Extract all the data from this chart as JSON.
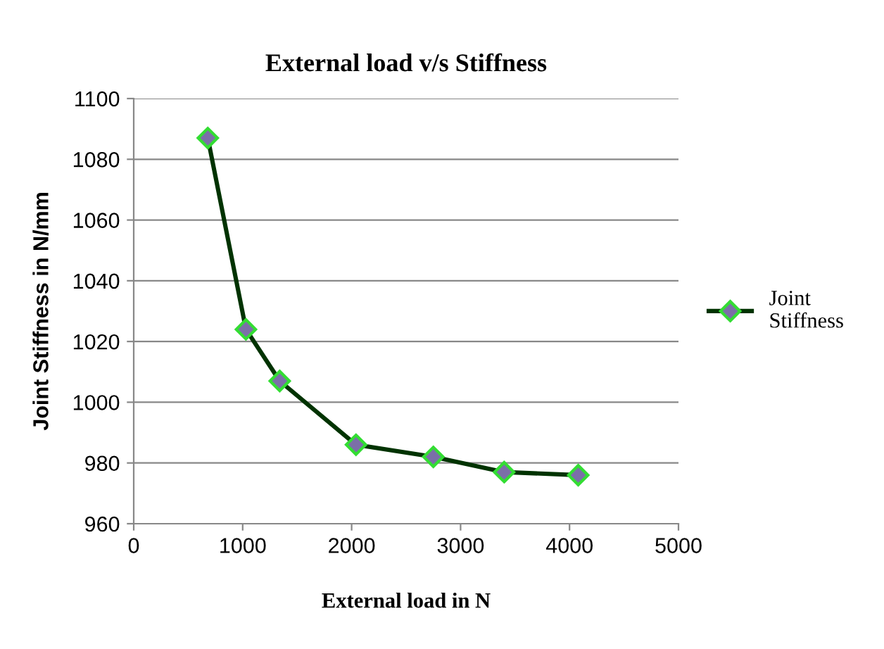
{
  "chart_data": {
    "type": "line",
    "title": "External load v/s Stiffness",
    "xlabel": "External load in N",
    "ylabel": "Joint Stiffness in N/mm",
    "x": [
      680,
      1030,
      1340,
      2040,
      2750,
      3400,
      4080
    ],
    "series": [
      {
        "name": "Joint Stiffness",
        "color": "#003300",
        "values": [
          1087,
          1024,
          1007,
          986,
          982,
          977,
          976
        ]
      }
    ],
    "xlim": [
      0,
      5000
    ],
    "xticks": [
      0,
      1000,
      2000,
      3000,
      4000,
      5000
    ],
    "ylim": [
      960,
      1100
    ],
    "yticks": [
      960,
      980,
      1000,
      1020,
      1040,
      1060,
      1080,
      1100
    ],
    "grid": "y",
    "legend": "right",
    "marker": "diamond",
    "line_style": "solid"
  }
}
